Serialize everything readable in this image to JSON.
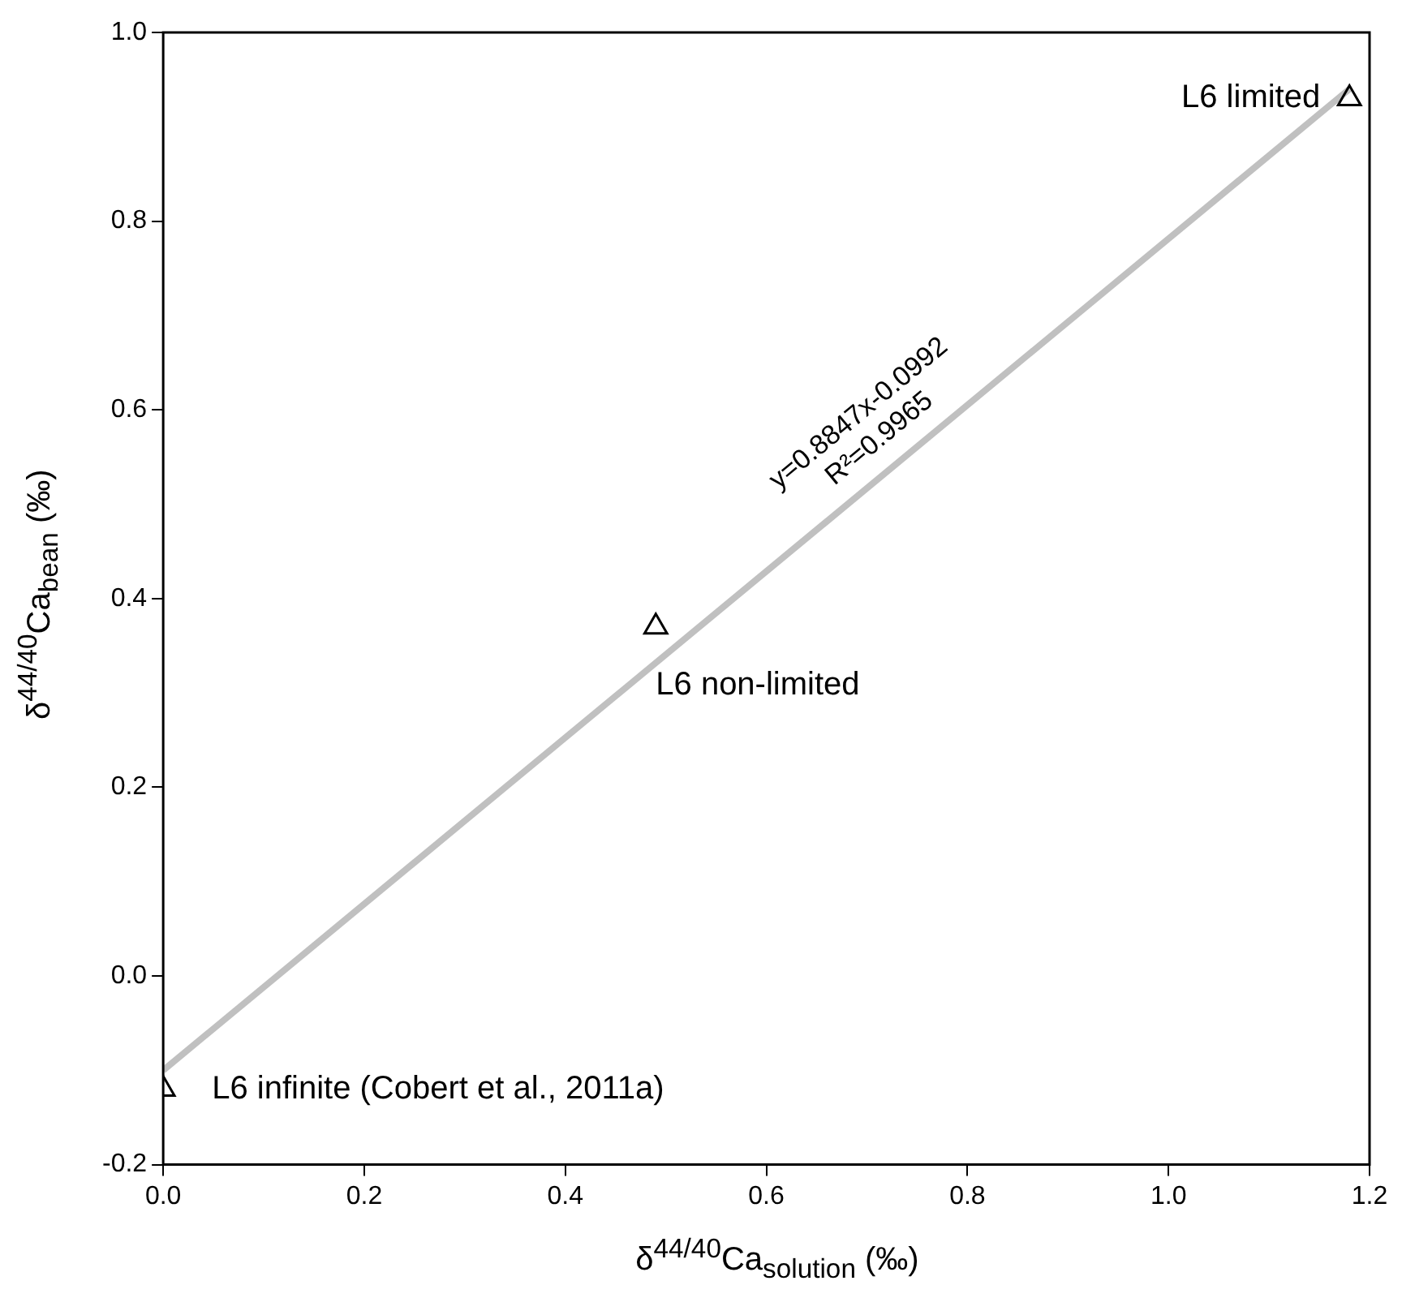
{
  "chart_data": {
    "type": "scatter",
    "xlabel": "δ$^{44/40}$Ca$_{solution}$ (‰)",
    "ylabel": "δ$^{44/40}$Ca$_{bean}$ (‰)",
    "xlim": [
      0,
      1.2
    ],
    "xticks": [
      {
        "value": 0,
        "label": "0.0"
      },
      {
        "value": 0.2,
        "label": "0.2"
      },
      {
        "value": 0.4,
        "label": "0.4"
      },
      {
        "value": 0.6,
        "label": "0.6"
      },
      {
        "value": 0.8,
        "label": "0.8"
      },
      {
        "value": 1,
        "label": "1.0"
      },
      {
        "value": 1.2,
        "label": "1.2"
      }
    ],
    "ylim": [
      -0.2,
      1
    ],
    "yticks": [
      {
        "value": -0.2,
        "label": "-0.2"
      },
      {
        "value": 0,
        "label": "0.0"
      },
      {
        "value": 0.2,
        "label": "0.2"
      },
      {
        "value": 0.4,
        "label": "0.4"
      },
      {
        "value": 0.6,
        "label": "0.6"
      },
      {
        "value": 0.8,
        "label": "0.8"
      },
      {
        "value": 1,
        "label": "1.0"
      }
    ],
    "grid": false,
    "legend": false,
    "series": [
      {
        "color": "#000000",
        "marker": "triangle",
        "x": [
          0,
          0.49,
          1.18
        ],
        "values": [
          -0.12,
          0.37,
          0.93
        ]
      },
      {
        "type": "line",
        "color": "#c0c0c0",
        "x": [
          0,
          1.18
        ],
        "values": [
          -0.1,
          0.94
        ]
      }
    ],
    "annotations": [
      "y=0.8847x-0.0992",
      "R²=0.9965",
      {
        "text": "L6 limited",
        "x": 1.18,
        "y": 0.93
      },
      {
        "text": "L6 non-limited",
        "x": 0.49,
        "y": 0.37
      },
      {
        "text": "L6 infinite (Cobert et al., 2011a)",
        "x": 0,
        "y": -0.12
      }
    ]
  }
}
